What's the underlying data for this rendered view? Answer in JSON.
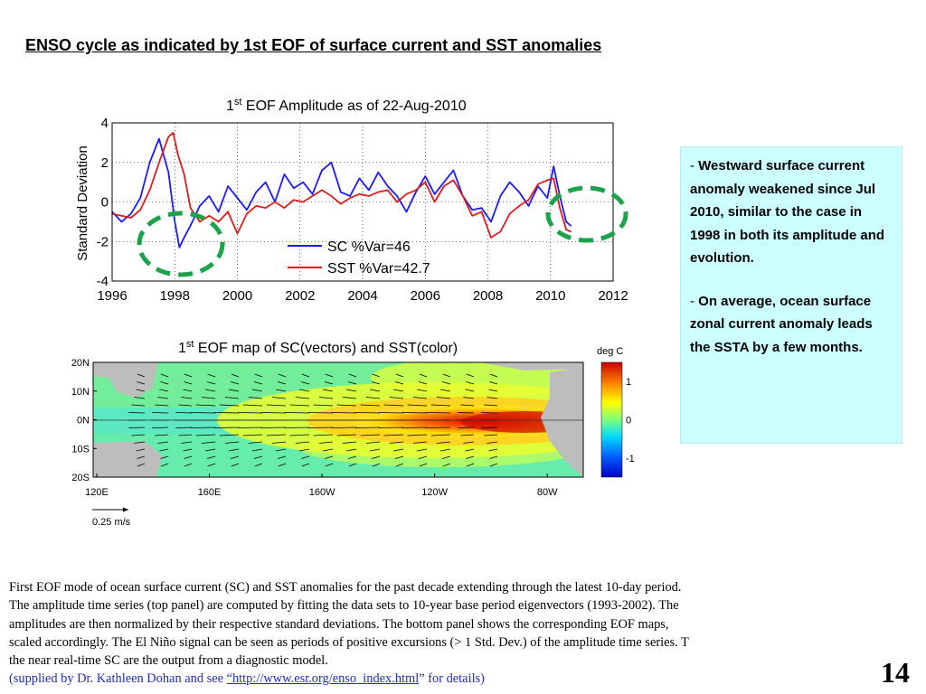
{
  "slide": {
    "title": "ENSO cycle as indicated by 1st EOF of surface current and SST anomalies",
    "page_number": "14"
  },
  "notes": {
    "item1_dash": "-",
    "item1": "Westward surface current anomaly weakened  since Jul 2010, similar to the case in 1998 in both its amplitude and evolution.",
    "item2_dash": "-",
    "item2": "On average, ocean surface  zonal current anomaly leads the SSTA by a few months."
  },
  "caption": {
    "line1": "First EOF mode of  ocean surface current  (SC)  and SST anomalies for the past decade extending through the latest 10-day period.",
    "line2": "The amplitude time series (top panel) are computed by fitting the data sets to 10-year base period eigenvectors (1993-2002). The",
    "line3": "amplitudes are then normalized by their respective standard deviations. The bottom panel shows the corresponding EOF maps,",
    "line4": "scaled accordingly. The El Niño signal can be seen as periods of positive excursions (> 1 Std. Dev.) of the amplitude time series. T",
    "line5": "the near real-time SC are the output from a diagnostic model.",
    "credit_pre": "(supplied by Dr. Kathleen Dohan and see ",
    "credit_link": "“http://www.esr.org/enso_index.html",
    "credit_post": "” for details)"
  },
  "colors": {
    "sc_line": "#1a1aff",
    "sst_line": "#e01b1b",
    "highlight_circle": "#1aa34a",
    "notes_bg": "#ccffff",
    "credit_text": "#1f2dbf"
  },
  "chart_data": [
    {
      "type": "line",
      "title_prefix": "1",
      "title_sup": "st",
      "title_rest": " EOF Amplitude as of 22-Aug-2010",
      "xlabel": "",
      "ylabel": "Standard Deviation",
      "xlim": [
        1996,
        2012
      ],
      "ylim": [
        -4,
        4
      ],
      "xticks": [
        1996,
        1998,
        2000,
        2002,
        2004,
        2006,
        2008,
        2010,
        2012
      ],
      "yticks": [
        4,
        2,
        0,
        -2,
        -4
      ],
      "grid": true,
      "legend_position": "lower-center",
      "series": [
        {
          "name": "SC %Var=46",
          "color": "#1a1aff",
          "x": [
            1996.0,
            1996.3,
            1996.6,
            1996.9,
            1997.2,
            1997.5,
            1997.8,
            1998.0,
            1998.15,
            1998.3,
            1998.5,
            1998.8,
            1999.1,
            1999.4,
            1999.7,
            2000.0,
            2000.3,
            2000.6,
            2000.9,
            2001.2,
            2001.5,
            2001.8,
            2002.1,
            2002.4,
            2002.7,
            2003.0,
            2003.3,
            2003.6,
            2003.9,
            2004.2,
            2004.5,
            2004.8,
            2005.1,
            2005.4,
            2005.7,
            2006.0,
            2006.3,
            2006.6,
            2006.9,
            2007.2,
            2007.5,
            2007.8,
            2008.1,
            2008.4,
            2008.7,
            2009.0,
            2009.3,
            2009.6,
            2009.9,
            2010.1,
            2010.3,
            2010.5,
            2010.65
          ],
          "y": [
            -0.5,
            -1.0,
            -0.6,
            0.2,
            2.0,
            3.2,
            1.5,
            -1.0,
            -2.3,
            -1.8,
            -1.2,
            -0.2,
            0.3,
            -0.5,
            0.8,
            0.2,
            -0.4,
            0.5,
            1.0,
            0.0,
            1.4,
            0.7,
            1.0,
            0.4,
            1.6,
            2.0,
            0.5,
            0.3,
            1.2,
            0.6,
            1.5,
            0.8,
            0.3,
            -0.5,
            0.5,
            1.3,
            0.4,
            1.0,
            1.6,
            0.3,
            -0.4,
            -0.3,
            -1.0,
            0.3,
            1.0,
            0.5,
            -0.2,
            0.8,
            0.2,
            1.8,
            0.3,
            -1.0,
            -1.2
          ]
        },
        {
          "name": "SST %Var=42.7",
          "color": "#e01b1b",
          "x": [
            1996.0,
            1996.3,
            1996.6,
            1996.9,
            1997.2,
            1997.5,
            1997.8,
            1997.95,
            1998.1,
            1998.3,
            1998.5,
            1998.8,
            1999.1,
            1999.4,
            1999.7,
            2000.0,
            2000.3,
            2000.6,
            2000.9,
            2001.2,
            2001.5,
            2001.8,
            2002.1,
            2002.4,
            2002.7,
            2003.0,
            2003.3,
            2003.6,
            2003.9,
            2004.2,
            2004.5,
            2004.8,
            2005.1,
            2005.4,
            2005.7,
            2006.0,
            2006.3,
            2006.6,
            2006.9,
            2007.2,
            2007.5,
            2007.8,
            2008.1,
            2008.4,
            2008.7,
            2009.0,
            2009.3,
            2009.6,
            2009.9,
            2010.1,
            2010.3,
            2010.5,
            2010.65
          ],
          "y": [
            -0.6,
            -0.7,
            -0.8,
            -0.4,
            0.6,
            2.0,
            3.3,
            3.5,
            2.4,
            1.4,
            -0.3,
            -1.0,
            -0.7,
            -1.0,
            -0.5,
            -1.6,
            -0.6,
            -0.2,
            -0.3,
            0.0,
            -0.3,
            0.1,
            0.0,
            0.3,
            0.6,
            0.3,
            -0.1,
            0.2,
            0.4,
            0.3,
            0.5,
            0.6,
            0.0,
            0.4,
            0.6,
            1.0,
            0.0,
            0.8,
            1.1,
            0.3,
            -0.7,
            -0.5,
            -1.8,
            -1.5,
            -0.6,
            -0.2,
            0.1,
            0.9,
            1.1,
            1.2,
            -0.3,
            -1.4,
            -1.5
          ]
        }
      ]
    },
    {
      "type": "heatmap",
      "title_prefix": "1",
      "title_sup": "st",
      "title_rest": " EOF map of SC(vectors) and SST(color)",
      "x_tick_labels": [
        "120E",
        "160E",
        "160W",
        "120W",
        "80W"
      ],
      "y_tick_labels": [
        "20N",
        "10N",
        "0N",
        "10S",
        "20S"
      ],
      "colorbar_label": "deg C",
      "colorbar_ticks": [
        "1",
        "0",
        "-1"
      ],
      "colorbar_range": [
        -1.5,
        1.5
      ],
      "vector_scale_label": "0.25 m/s",
      "grid": false
    }
  ]
}
